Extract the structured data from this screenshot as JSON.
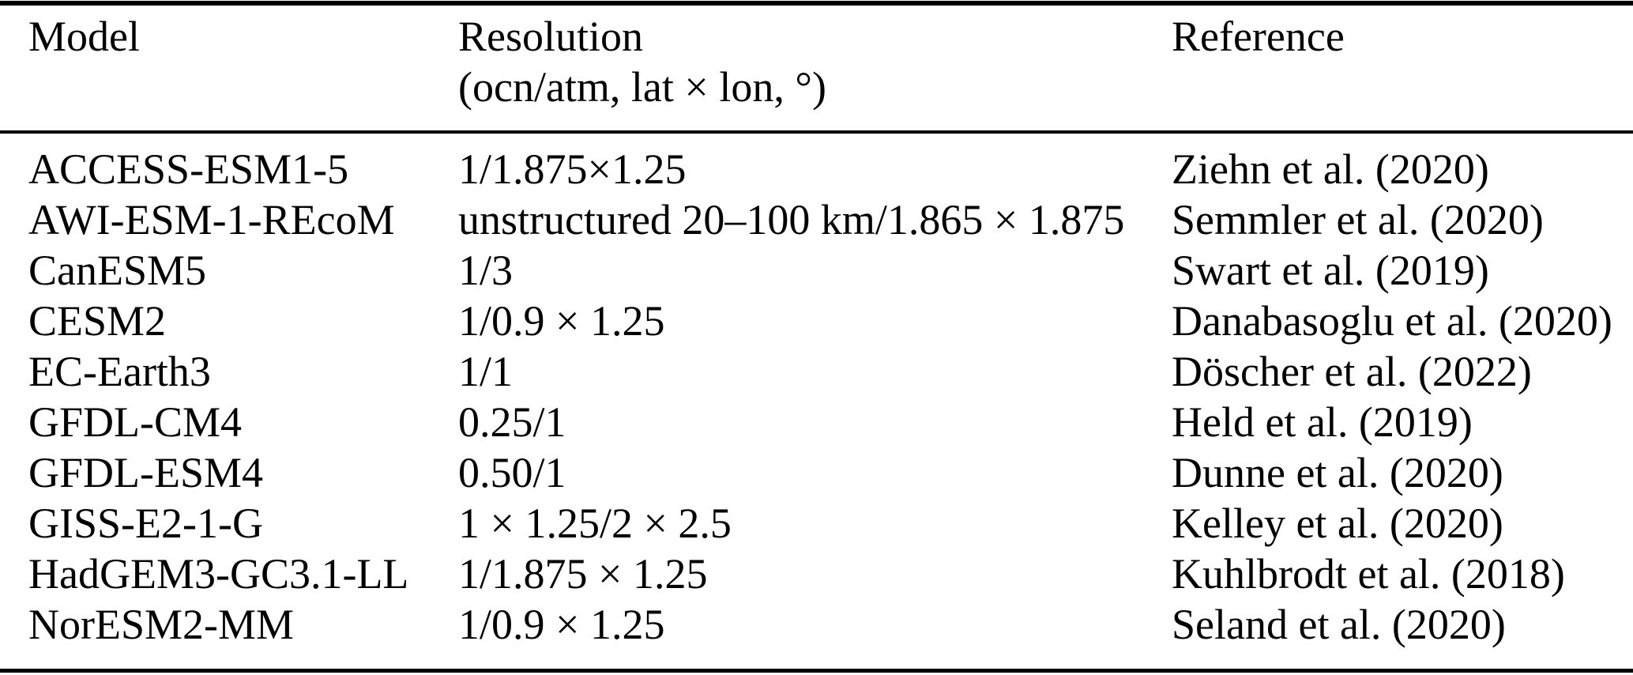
{
  "table": {
    "columns": [
      {
        "label": "Model"
      },
      {
        "label": "Resolution",
        "sublabel": "(ocn/atm, lat × lon, °)"
      },
      {
        "label": "Reference"
      }
    ],
    "rows": [
      {
        "model": "ACCESS-ESM1-5",
        "resolution": "1/1.875×1.25",
        "reference": "Ziehn et al. (2020)"
      },
      {
        "model": "AWI-ESM-1-REcoM",
        "resolution": "unstructured 20–100 km/1.865 × 1.875",
        "reference": "Semmler et al. (2020)"
      },
      {
        "model": "CanESM5",
        "resolution": "1/3",
        "reference": "Swart et al. (2019)"
      },
      {
        "model": "CESM2",
        "resolution": "1/0.9 × 1.25",
        "reference": "Danabasoglu et al. (2020)"
      },
      {
        "model": "EC-Earth3",
        "resolution": "1/1",
        "reference": "Döscher et al. (2022)"
      },
      {
        "model": "GFDL-CM4",
        "resolution": "0.25/1",
        "reference": "Held et al. (2019)"
      },
      {
        "model": "GFDL-ESM4",
        "resolution": "0.50/1",
        "reference": "Dunne et al. (2020)"
      },
      {
        "model": "GISS-E2-1-G",
        "resolution": "1 × 1.25/2 × 2.5",
        "reference": "Kelley et al. (2020)"
      },
      {
        "model": "HadGEM3-GC3.1-LL",
        "resolution": "1/1.875 × 1.25",
        "reference": "Kuhlbrodt et al. (2018)"
      },
      {
        "model": "NorESM2-MM",
        "resolution": "1/0.9 × 1.25",
        "reference": "Seland et al. (2020)"
      }
    ],
    "colors": {
      "text": "#000000",
      "background": "#ffffff",
      "rule": "#000000"
    }
  }
}
